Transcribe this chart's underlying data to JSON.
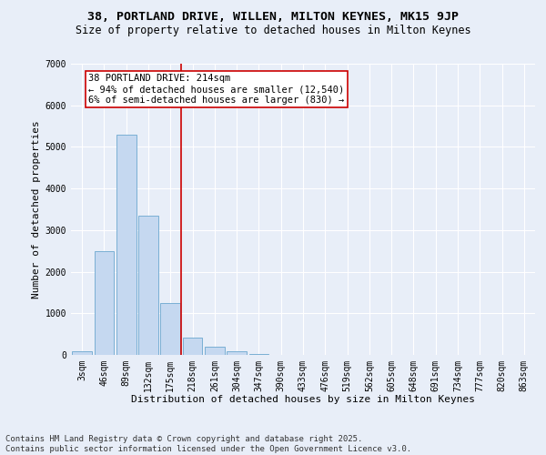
{
  "title": "38, PORTLAND DRIVE, WILLEN, MILTON KEYNES, MK15 9JP",
  "subtitle": "Size of property relative to detached houses in Milton Keynes",
  "xlabel": "Distribution of detached houses by size in Milton Keynes",
  "ylabel": "Number of detached properties",
  "categories": [
    "3sqm",
    "46sqm",
    "89sqm",
    "132sqm",
    "175sqm",
    "218sqm",
    "261sqm",
    "304sqm",
    "347sqm",
    "390sqm",
    "433sqm",
    "476sqm",
    "519sqm",
    "562sqm",
    "605sqm",
    "648sqm",
    "691sqm",
    "734sqm",
    "777sqm",
    "820sqm",
    "863sqm"
  ],
  "values": [
    80,
    2500,
    5300,
    3350,
    1250,
    420,
    200,
    80,
    20,
    5,
    2,
    0,
    0,
    0,
    0,
    0,
    0,
    0,
    0,
    0,
    0
  ],
  "bar_color": "#c5d8f0",
  "bar_edge_color": "#7aafd4",
  "marker_color": "#cc0000",
  "annotation_line1": "38 PORTLAND DRIVE: 214sqm",
  "annotation_line2": "← 94% of detached houses are smaller (12,540)",
  "annotation_line3": "6% of semi-detached houses are larger (830) →",
  "ylim": [
    0,
    7000
  ],
  "yticks": [
    0,
    1000,
    2000,
    3000,
    4000,
    5000,
    6000,
    7000
  ],
  "footer_line1": "Contains HM Land Registry data © Crown copyright and database right 2025.",
  "footer_line2": "Contains public sector information licensed under the Open Government Licence v3.0.",
  "bg_color": "#e8eef8",
  "grid_color": "#ffffff",
  "title_fontsize": 9.5,
  "subtitle_fontsize": 8.5,
  "axis_label_fontsize": 8,
  "tick_fontsize": 7,
  "annotation_fontsize": 7.5,
  "footer_fontsize": 6.5
}
